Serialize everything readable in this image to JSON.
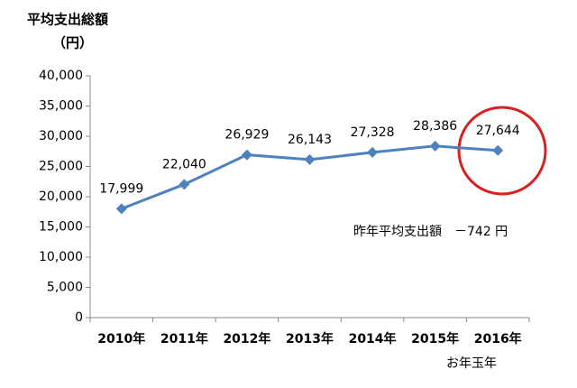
{
  "chart_data": {
    "type": "line",
    "title": "平均支出総額",
    "y_label": "（円）",
    "categories": [
      "2010年",
      "2011年",
      "2012年",
      "2013年",
      "2014年",
      "2015年",
      "2016年"
    ],
    "values": [
      17999,
      22040,
      26929,
      26143,
      27328,
      28386,
      27644
    ],
    "value_labels": [
      "17,999",
      "22,040",
      "26,929",
      "26,143",
      "27,328",
      "28,386",
      "27,644"
    ],
    "color": "#4f81bd",
    "ylim": [
      0,
      40000
    ],
    "yticks": [
      0,
      {
        "value": 5000,
        "label": "5,000"
      },
      {
        "value": 10000,
        "label": "10,000"
      },
      {
        "value": 15000,
        "label": "15,000"
      },
      {
        "value": 20000,
        "label": "20,000"
      },
      {
        "value": 25000,
        "label": "25,000"
      },
      {
        "value": 30000,
        "label": "30,000"
      },
      {
        "value": 35000,
        "label": "35,000"
      },
      {
        "value": 40000,
        "label": "40,000"
      }
    ],
    "grid": false,
    "annotations": [
      "昨年平均支出額　－742 円",
      "お年玉年"
    ]
  }
}
